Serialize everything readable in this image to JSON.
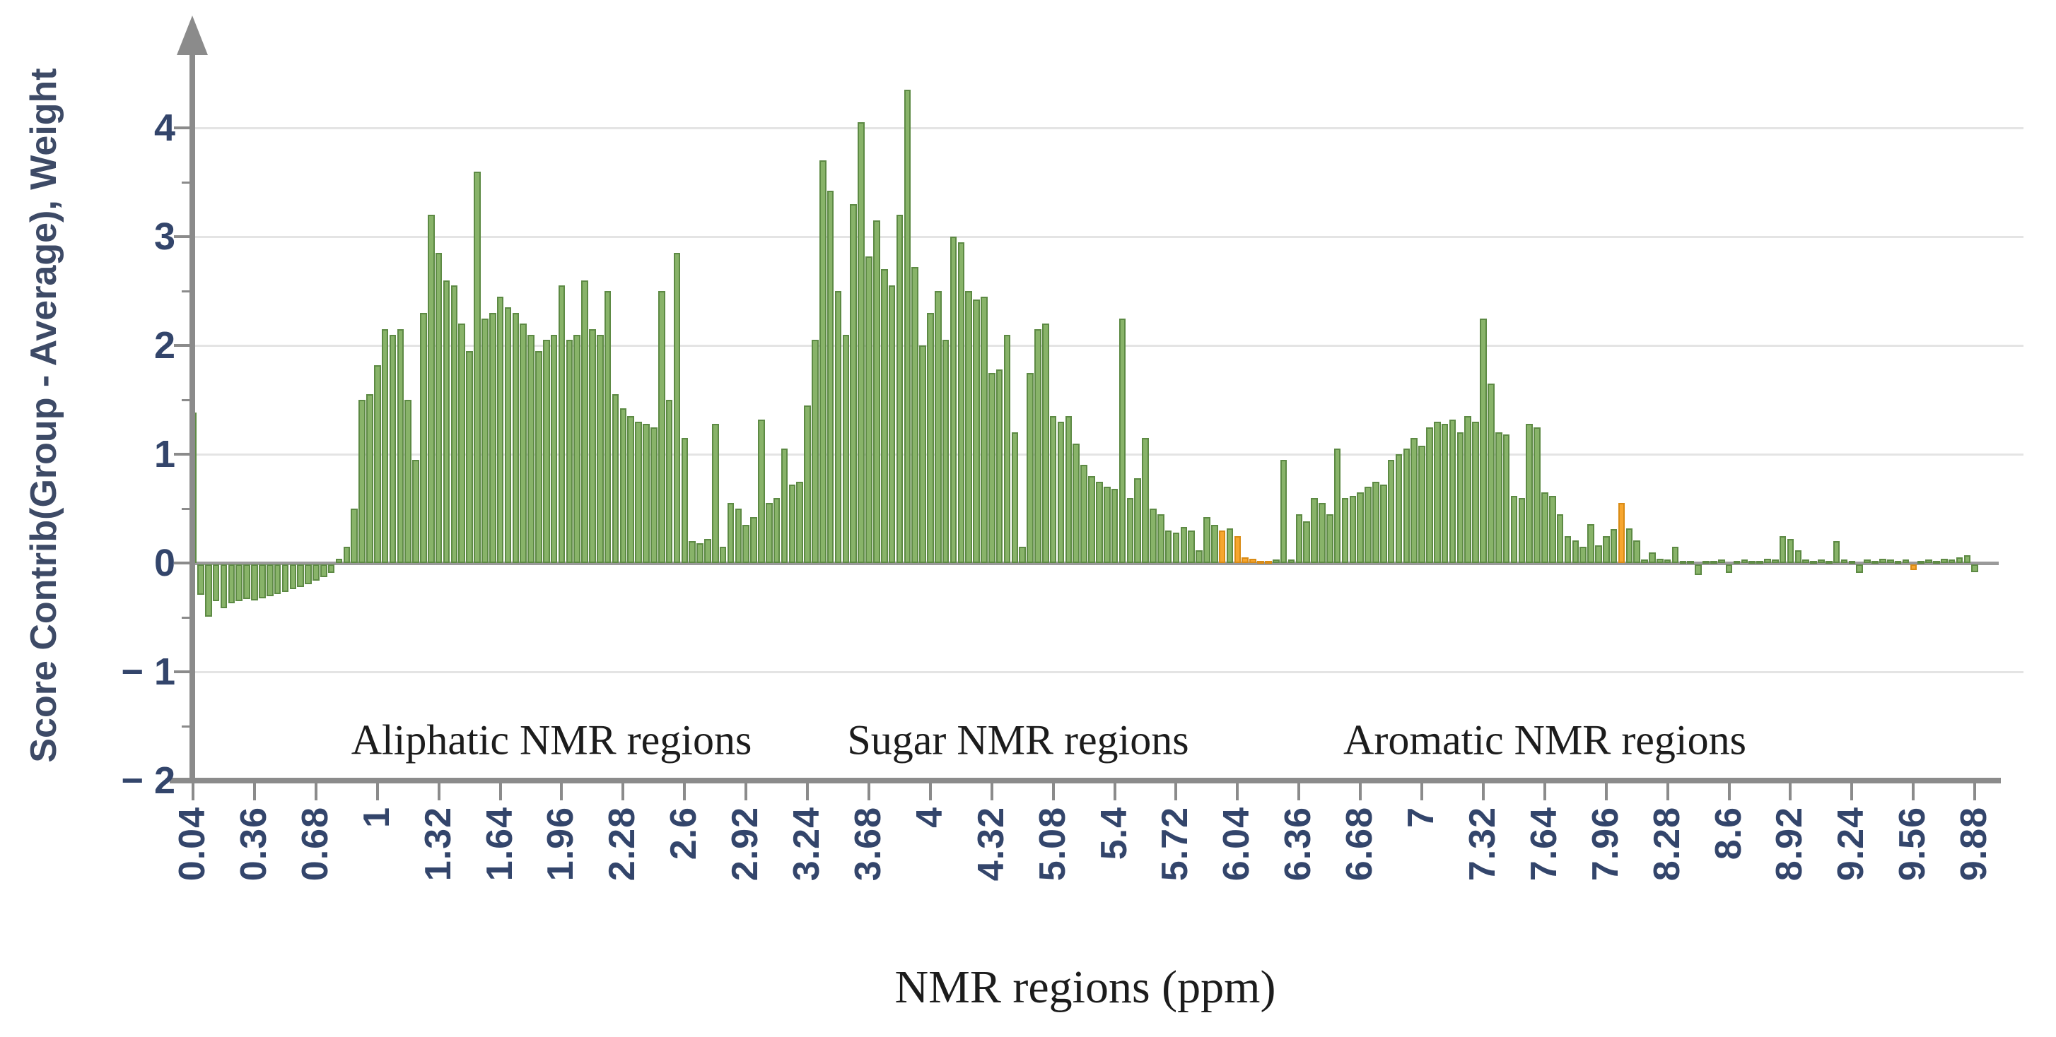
{
  "chart_data": {
    "type": "bar",
    "title": "",
    "ylabel": "Score Contrib(Group - Average), Weight",
    "xlabel": "NMR regions (ppm)",
    "ylim": [
      -2,
      4.6
    ],
    "grid": true,
    "legend_position": "none",
    "y_ticks": [
      "4",
      "3",
      "2",
      "1",
      "0",
      "−1",
      "−2"
    ],
    "y_tick_values": [
      4,
      3,
      2,
      1,
      0,
      -1,
      -2
    ],
    "x_tick_labels": [
      "0.04",
      "0.36",
      "0.68",
      "1",
      "1.32",
      "1.64",
      "1.96",
      "2.28",
      "2.6",
      "2.92",
      "3.24",
      "3.68",
      "4",
      "4.32",
      "5.08",
      "5.4",
      "5.72",
      "6.04",
      "6.36",
      "6.68",
      "7",
      "7.32",
      "7.64",
      "7.96",
      "8.28",
      "8.6",
      "8.92",
      "9.24",
      "9.56",
      "9.88"
    ],
    "bars_per_tick": 8,
    "bar_color": "#88b369",
    "bar_edge_color": "#5d8a44",
    "highlight_color": "#f7a62f",
    "highlight_edge_color": "#d98b15",
    "axis_color": "#8b8b8b",
    "tick_label_color": "#33456b",
    "values": [
      1.38,
      -0.28,
      -0.48,
      -0.34,
      -0.4,
      -0.36,
      -0.34,
      -0.32,
      -0.33,
      -0.31,
      -0.29,
      -0.27,
      -0.25,
      -0.23,
      -0.21,
      -0.18,
      -0.15,
      -0.12,
      -0.08,
      0.04,
      0.15,
      0.5,
      1.5,
      1.55,
      1.82,
      2.15,
      2.1,
      2.15,
      1.5,
      0.95,
      2.3,
      3.2,
      2.85,
      2.6,
      2.55,
      2.2,
      1.95,
      3.6,
      2.25,
      2.3,
      2.45,
      2.35,
      2.3,
      2.2,
      2.1,
      1.95,
      2.05,
      2.1,
      2.55,
      2.05,
      2.1,
      2.6,
      2.15,
      2.1,
      2.5,
      1.55,
      1.42,
      1.35,
      1.3,
      1.28,
      1.25,
      2.5,
      1.5,
      2.85,
      1.15,
      0.2,
      0.18,
      0.22,
      1.28,
      0.15,
      0.55,
      0.5,
      0.35,
      0.42,
      1.32,
      0.55,
      0.6,
      1.05,
      0.72,
      0.75,
      1.45,
      2.05,
      3.7,
      3.42,
      2.5,
      2.1,
      3.3,
      4.05,
      2.82,
      3.15,
      2.7,
      2.55,
      3.2,
      4.35,
      2.72,
      2.0,
      2.3,
      2.5,
      2.05,
      3.0,
      2.95,
      2.5,
      2.42,
      2.45,
      1.75,
      1.78,
      2.1,
      1.2,
      0.15,
      1.75,
      2.15,
      2.2,
      1.35,
      1.3,
      1.35,
      1.1,
      0.9,
      0.8,
      0.75,
      0.7,
      0.68,
      2.25,
      0.6,
      0.78,
      1.15,
      0.5,
      0.45,
      0.3,
      0.28,
      0.33,
      0.3,
      0.12,
      0.42,
      0.35,
      0.3,
      0.32,
      0.25,
      0.05,
      0.04,
      0.02,
      0.02,
      0.03,
      0.95,
      0.03,
      0.45,
      0.38,
      0.6,
      0.55,
      0.45,
      1.05,
      0.6,
      0.62,
      0.65,
      0.7,
      0.75,
      0.72,
      0.95,
      1.0,
      1.05,
      1.15,
      1.08,
      1.25,
      1.3,
      1.28,
      1.32,
      1.2,
      1.35,
      1.3,
      2.25,
      1.65,
      1.2,
      1.18,
      0.62,
      0.6,
      1.28,
      1.25,
      0.65,
      0.62,
      0.45,
      0.25,
      0.21,
      0.15,
      0.36,
      0.16,
      0.25,
      0.31,
      0.55,
      0.32,
      0.21,
      0.03,
      0.1,
      0.04,
      0.03,
      0.15,
      0.02,
      0.02,
      -0.1,
      0.02,
      0.02,
      0.03,
      -0.08,
      0.02,
      0.03,
      0.02,
      0.02,
      0.04,
      0.03,
      0.25,
      0.22,
      0.12,
      0.03,
      0.02,
      0.03,
      0.02,
      0.2,
      0.03,
      0.02,
      -0.08,
      0.03,
      0.02,
      0.04,
      0.03,
      0.02,
      0.03,
      -0.05,
      0.02,
      0.03,
      0.02,
      0.04,
      0.03,
      0.05,
      0.07,
      -0.07
    ],
    "orange_indices": [
      134,
      136,
      137,
      138,
      139,
      140,
      186,
      224
    ],
    "annotations": [
      "Aliphatic NMR regions",
      "Sugar NMR regions",
      "Aromatic NMR regions"
    ]
  }
}
